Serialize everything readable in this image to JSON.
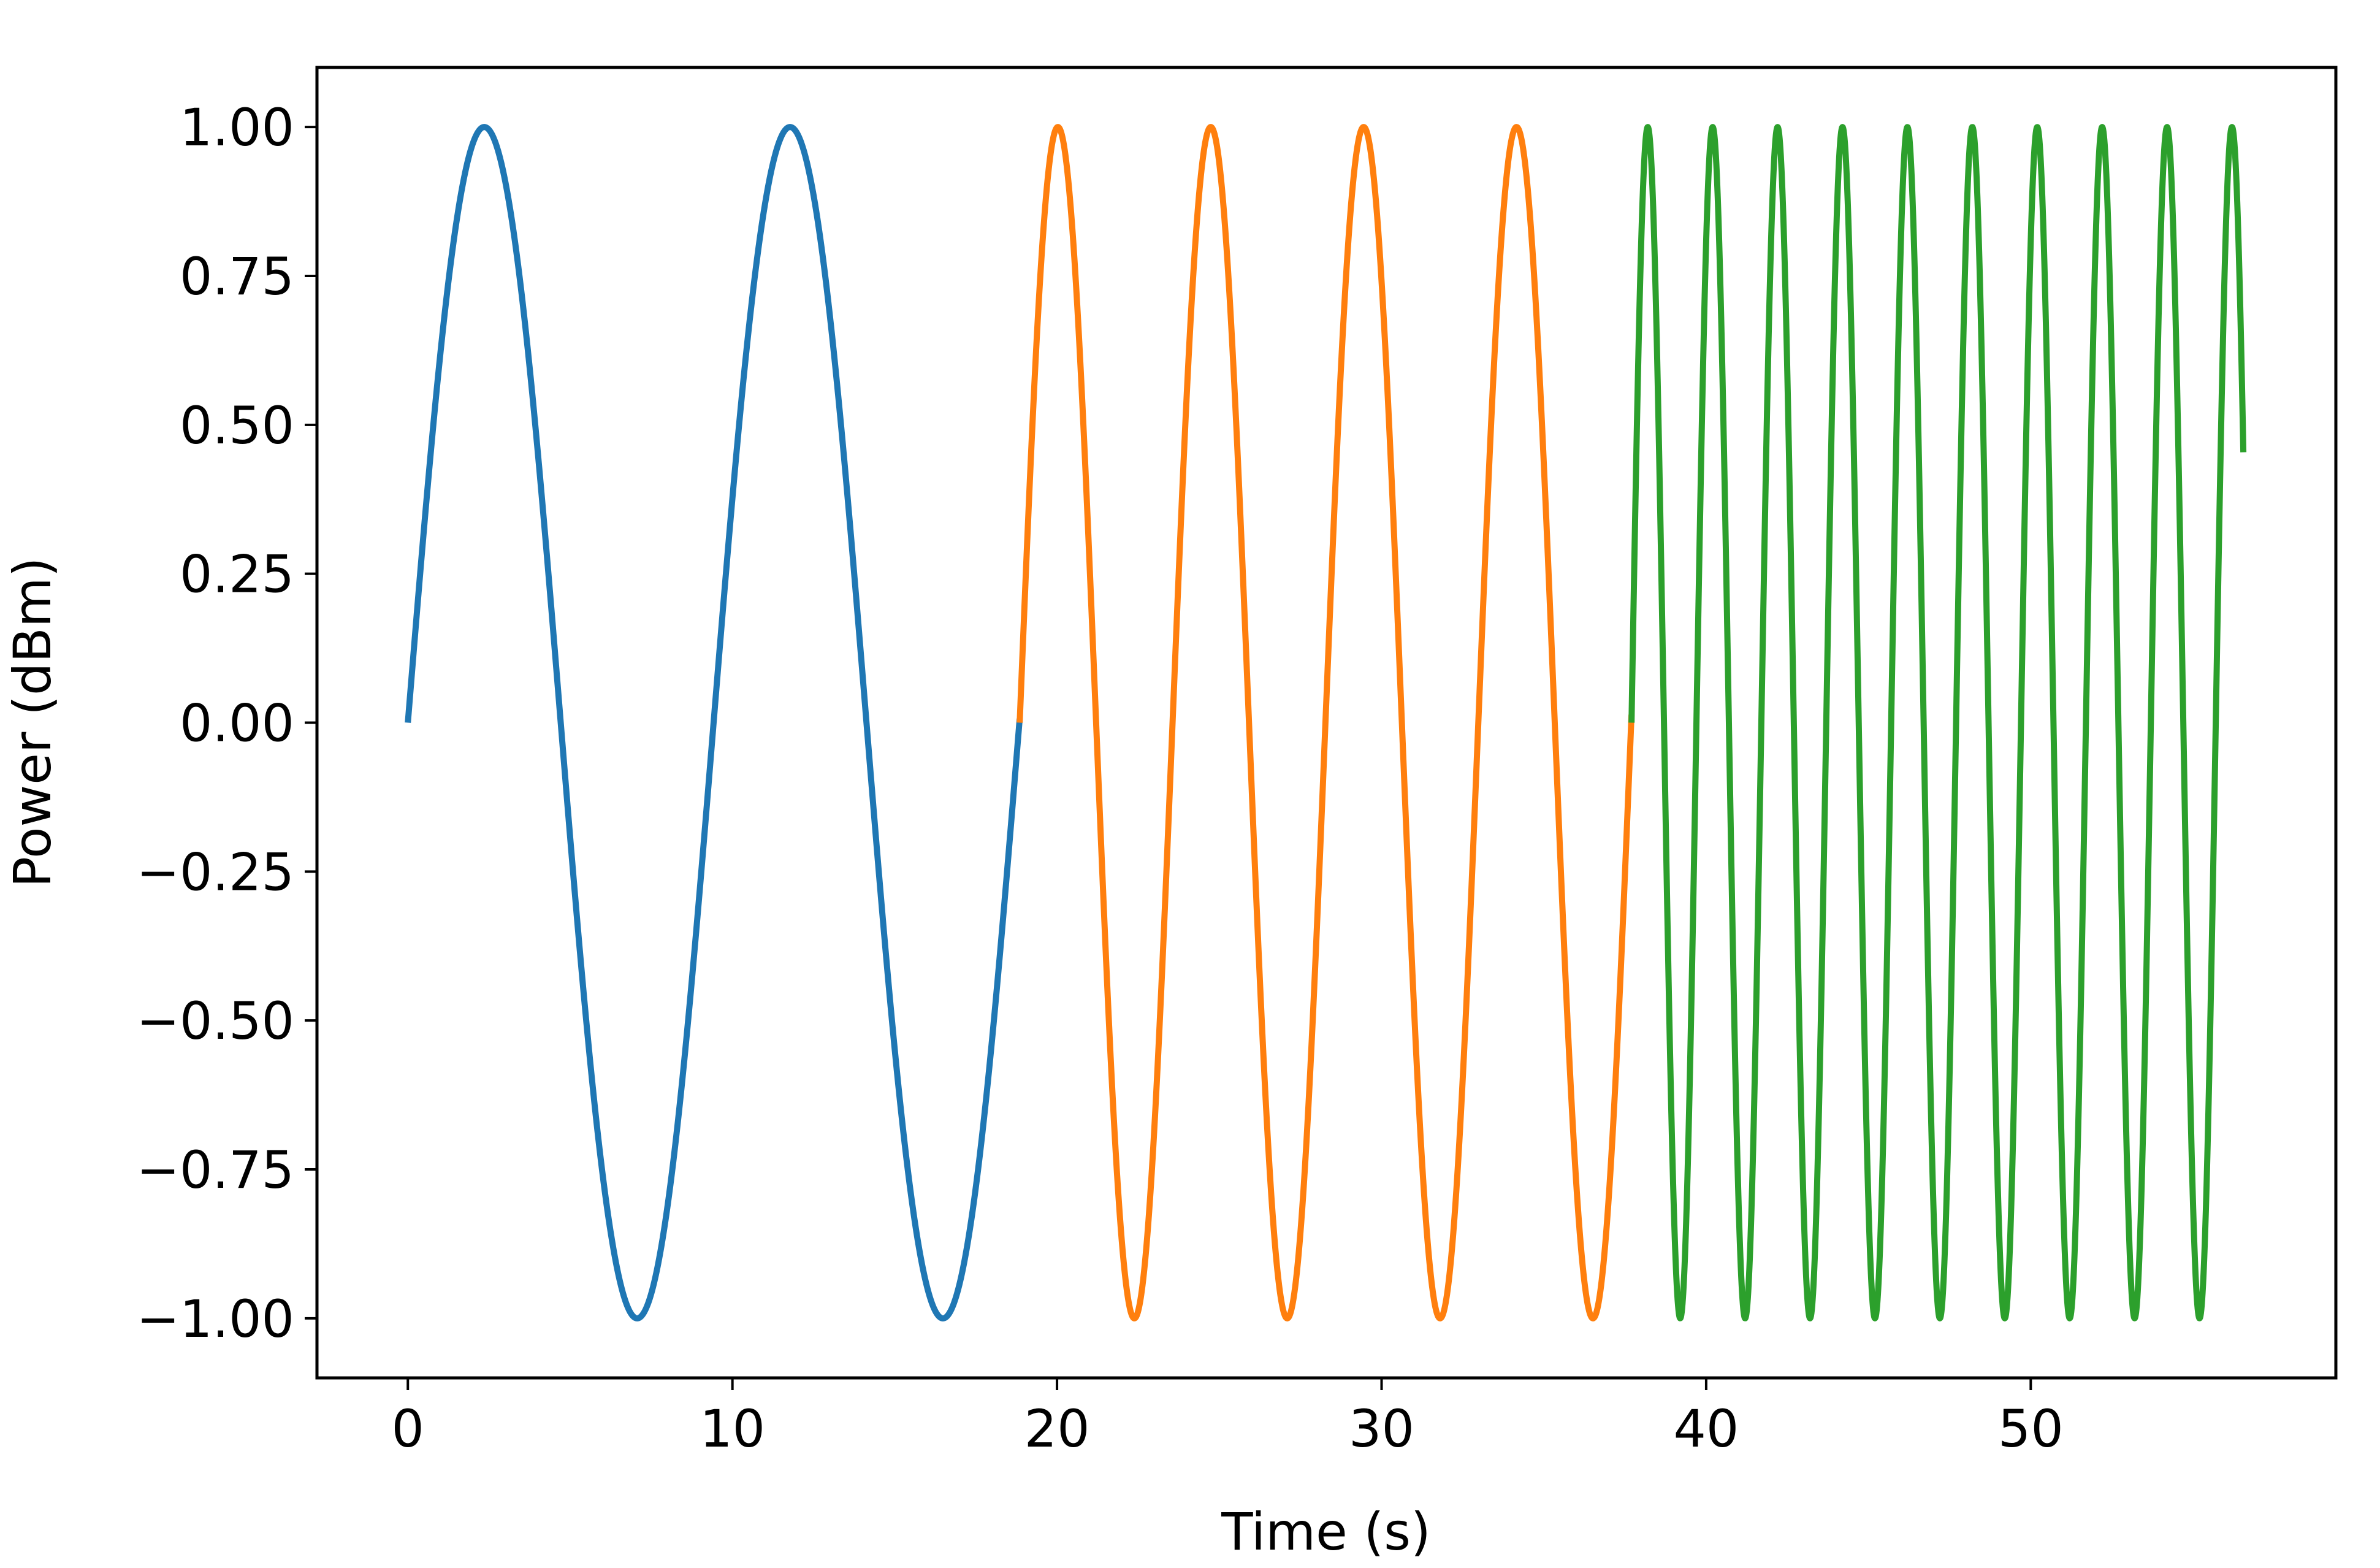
{
  "chart_data": {
    "type": "line",
    "title": "",
    "xlabel": "Time (s)",
    "ylabel": "Power (dBm)",
    "xlim": [
      -2.8,
      59.4
    ],
    "ylim": [
      -1.1,
      1.1
    ],
    "grid": false,
    "legend": "none",
    "x_ticks": [
      0,
      10,
      20,
      30,
      40,
      50
    ],
    "x_tick_labels": [
      "0",
      "10",
      "20",
      "30",
      "40",
      "50"
    ],
    "y_ticks": [
      1.0,
      0.75,
      0.5,
      0.25,
      0.0,
      -0.25,
      -0.5,
      -0.75,
      -1.0
    ],
    "y_tick_labels": [
      "1.00",
      "0.75",
      "0.50",
      "0.25",
      "0.00",
      "−0.25",
      "−0.50",
      "−0.75",
      "−1.00"
    ],
    "series": [
      {
        "color": "#1f77b4",
        "function": "sine",
        "x_range": [
          0,
          18.85
        ],
        "period": 9.42,
        "amplitude": 1.0
      },
      {
        "color": "#ff7f0e",
        "function": "sine",
        "x_range": [
          18.85,
          37.7
        ],
        "period": 4.71,
        "amplitude": 1.0
      },
      {
        "color": "#2ca02c",
        "function": "sine",
        "x_range": [
          37.7,
          56.55
        ],
        "period": 2.0,
        "amplitude": 1.0
      }
    ]
  }
}
